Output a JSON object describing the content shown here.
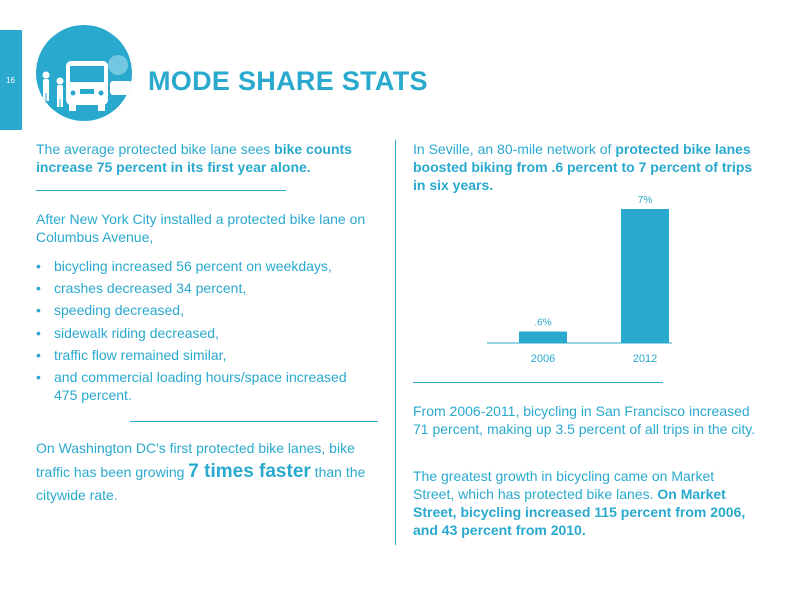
{
  "page_number": "16",
  "title": "MODE SHARE STATS",
  "left": {
    "p1_a": "The average protected bike lane sees ",
    "p1_b": "bike counts increase 75 percent in its first year alone.",
    "p2": "After New York City installed a protected bike lane on Columbus Avenue,",
    "bullets": [
      "bicycling increased 56 percent on weekdays,",
      "crashes decreased 34 percent,",
      "speeding decreased,",
      "sidewalk riding decreased,",
      "traffic flow remained similar,",
      "and commercial loading hours/space increased 475 percent."
    ],
    "p3_a": "On Washington DC's first protected bike lanes, bike traffic has been growing ",
    "p3_b": "7 times faster",
    "p3_c": " than the citywide rate."
  },
  "right": {
    "p1_a": "In Seville, an 80-mile network of ",
    "p1_b": "protected bike lanes boosted biking from .6 percent to 7 percent of trips in six years.",
    "p2": "From 2006-2011, bicycling in San Francisco increased 71 percent, making up 3.5 percent of all trips in the city.",
    "p3_a": "The greatest growth in bicycling came on Market Street, which has protected bike lanes. ",
    "p3_b": "On Market Street, bicycling increased 115 percent from 2006, and 43 percent from 2010."
  },
  "chart_data": {
    "type": "bar",
    "categories": [
      "2006",
      "2012"
    ],
    "values": [
      0.6,
      7
    ],
    "data_labels": [
      ".6%",
      "7%"
    ],
    "title": "",
    "xlabel": "",
    "ylabel": "",
    "ylim": [
      0,
      7
    ],
    "grid": false,
    "bar_color": "#2aa9cf"
  },
  "colors": {
    "accent": "#2aa9cf"
  }
}
